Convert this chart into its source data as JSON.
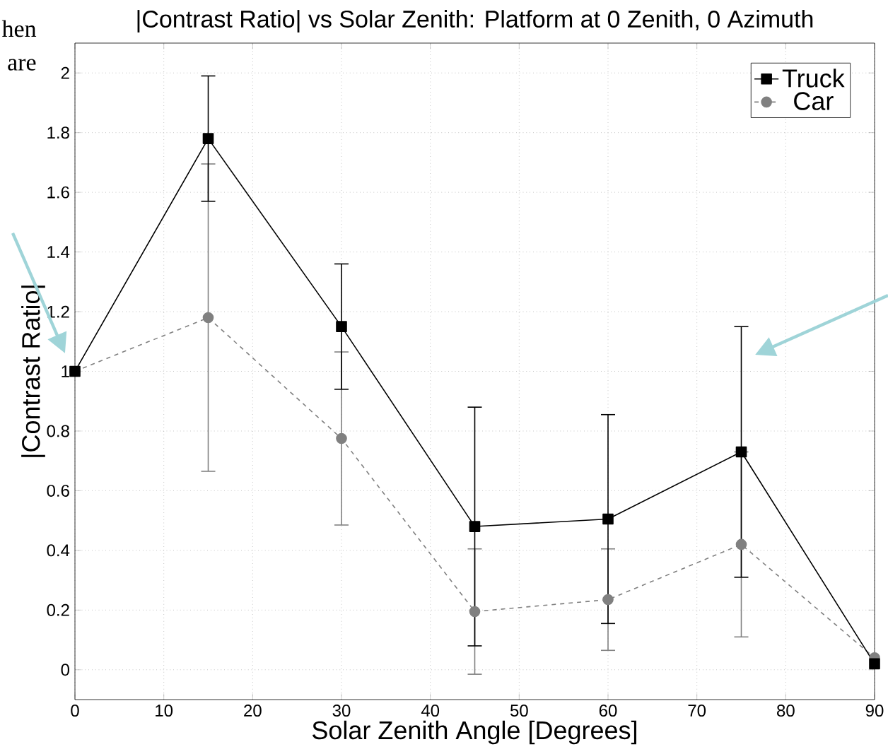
{
  "chart_data": {
    "type": "line",
    "title": "|Contrast Ratio| vs Solar Zenith: Platform at 0 Zenith, 0 Azimuth",
    "xlabel": "Solar Zenith Angle [Degrees]",
    "ylabel": "|Contrast Ratio|",
    "x": [
      0,
      15,
      30,
      45,
      60,
      75,
      90
    ],
    "series": [
      {
        "name": "Truck",
        "color": "#000000",
        "marker": "square",
        "line_style": "solid",
        "values": [
          1.0,
          1.78,
          1.15,
          0.48,
          0.505,
          0.73,
          0.02
        ],
        "errors": [
          null,
          0.21,
          0.21,
          0.4,
          0.35,
          0.42,
          null
        ]
      },
      {
        "name": "Car",
        "color": "#808080",
        "marker": "circle",
        "line_style": "dashed",
        "values": [
          1.0,
          1.18,
          0.775,
          0.195,
          0.235,
          0.42,
          0.04
        ],
        "errors": [
          null,
          0.515,
          0.29,
          0.21,
          0.17,
          0.31,
          null
        ]
      }
    ],
    "xlim": [
      0,
      90
    ],
    "ylim": [
      -0.1,
      2.1
    ],
    "xticks": [
      0,
      10,
      20,
      30,
      40,
      50,
      60,
      70,
      80,
      90
    ],
    "yticks": [
      0,
      0.2,
      0.4,
      0.6,
      0.8,
      1,
      1.2,
      1.4,
      1.6,
      1.8,
      2
    ],
    "grid": true,
    "legend": "top right",
    "annotations": [
      "hen",
      "are"
    ]
  }
}
